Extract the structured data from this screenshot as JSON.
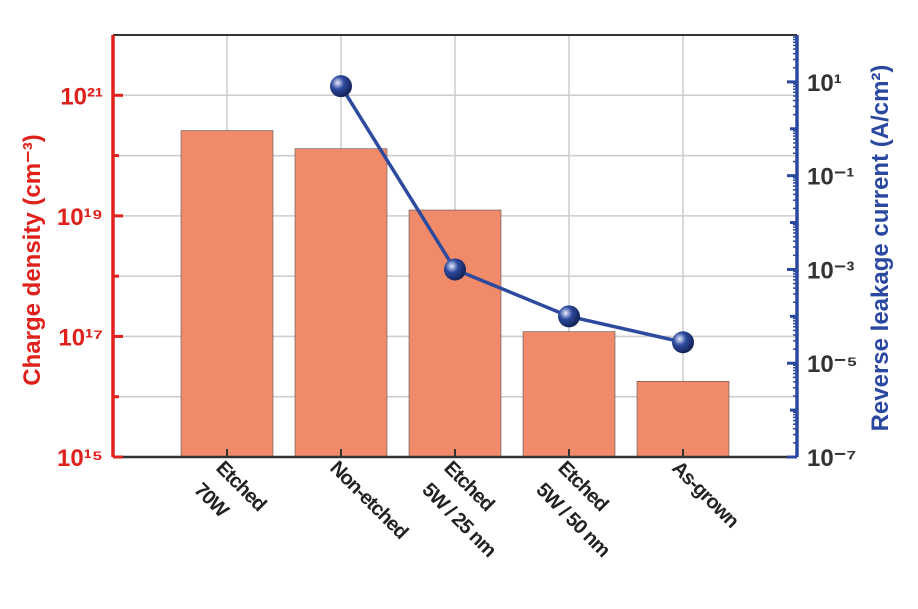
{
  "chart_data": {
    "type": "bar-line",
    "categories": [
      "Etched\n70W",
      "Non-etched",
      "Etched\n5W / 25 nm",
      "Etched\n5W / 50 nm",
      "As-grown"
    ],
    "series": [
      {
        "type": "bar",
        "color": "#f08a69",
        "values": [
          2.6e+20,
          1.3e+20,
          1.25e+19,
          1.2e+17,
          1.8e+16
        ]
      },
      {
        "type": "line",
        "axis": "y2",
        "color": "#2e4a9e",
        "values": [
          null,
          8.1,
          0.001,
          0.0001,
          2.8e-05
        ]
      }
    ],
    "ylabel": "Charge density (cm⁻³)",
    "y2label": "Reverse leakage current (A/cm²)",
    "log_y": true,
    "log_y2": true,
    "ylim": [
      1000000000000000.0,
      1e+22
    ],
    "yticks": [
      {
        "value": 1000000000000000.0,
        "label": "10¹⁵"
      },
      {
        "value": 1e+17,
        "label": "10¹⁷"
      },
      {
        "value": 1e+19,
        "label": "10¹⁹"
      },
      {
        "value": 1e+21,
        "label": "10²¹"
      }
    ],
    "yminor": [
      1e+16,
      1e+18,
      1e+20
    ],
    "y2lim": [
      1e-07,
      100
    ],
    "y2ticks": [
      {
        "value": 1e-07,
        "label": "10⁻⁷"
      },
      {
        "value": 1e-05,
        "label": "10⁻⁵"
      },
      {
        "value": 0.001,
        "label": "10⁻³"
      },
      {
        "value": 0.1,
        "label": "10⁻¹"
      },
      {
        "value": 10,
        "label": "10¹"
      }
    ],
    "y2minor": [
      1e-06,
      0.0001,
      0.01,
      1
    ],
    "ycolor": "#e0201b",
    "y2color": "#2b48a0",
    "grid": true
  }
}
